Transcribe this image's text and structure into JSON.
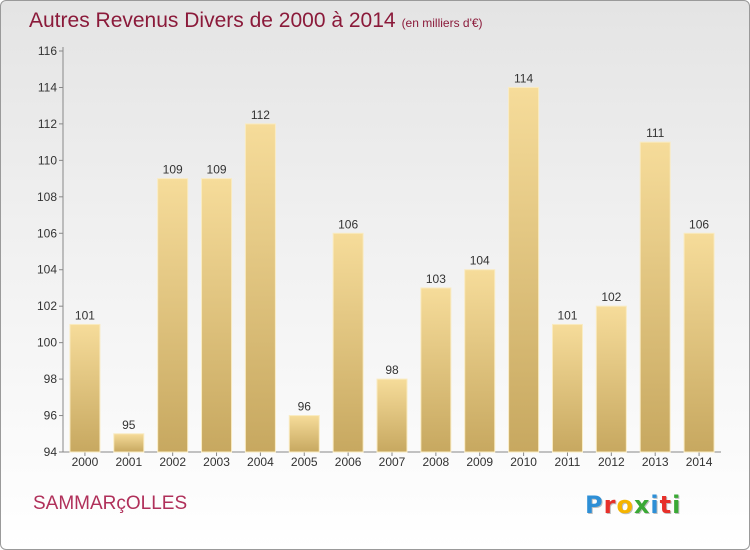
{
  "header": {
    "title": "Autres Revenus Divers de 2000 à 2014",
    "unit": "(en milliers d'€)"
  },
  "footer": {
    "place": "SAMMARçOLLES",
    "logo": [
      "P",
      "r",
      "o",
      "x",
      "i",
      "t",
      "i"
    ]
  },
  "colors": {
    "title": "#8b1a3a",
    "place": "#b0305a",
    "bar_top": "#f6dc9a",
    "bar_bottom": "#c7a860",
    "logo": [
      "#2e8fd6",
      "#e7302a",
      "#f5b400",
      "#3aa935",
      "#2e8fd6",
      "#e7302a",
      "#3aa935"
    ]
  },
  "chart_data": {
    "type": "bar",
    "title": "Autres Revenus Divers de 2000 à 2014",
    "xlabel": "",
    "ylabel": "",
    "categories": [
      "2000",
      "2001",
      "2002",
      "2003",
      "2004",
      "2005",
      "2006",
      "2007",
      "2008",
      "2009",
      "2010",
      "2011",
      "2012",
      "2013",
      "2014"
    ],
    "values": [
      101,
      95,
      109,
      109,
      112,
      96,
      106,
      98,
      103,
      104,
      114,
      101,
      102,
      111,
      106
    ],
    "ylim": [
      94,
      116
    ],
    "yticks": [
      94,
      96,
      98,
      100,
      102,
      104,
      106,
      108,
      110,
      112,
      114,
      116
    ],
    "grid": false,
    "legend": "none"
  }
}
